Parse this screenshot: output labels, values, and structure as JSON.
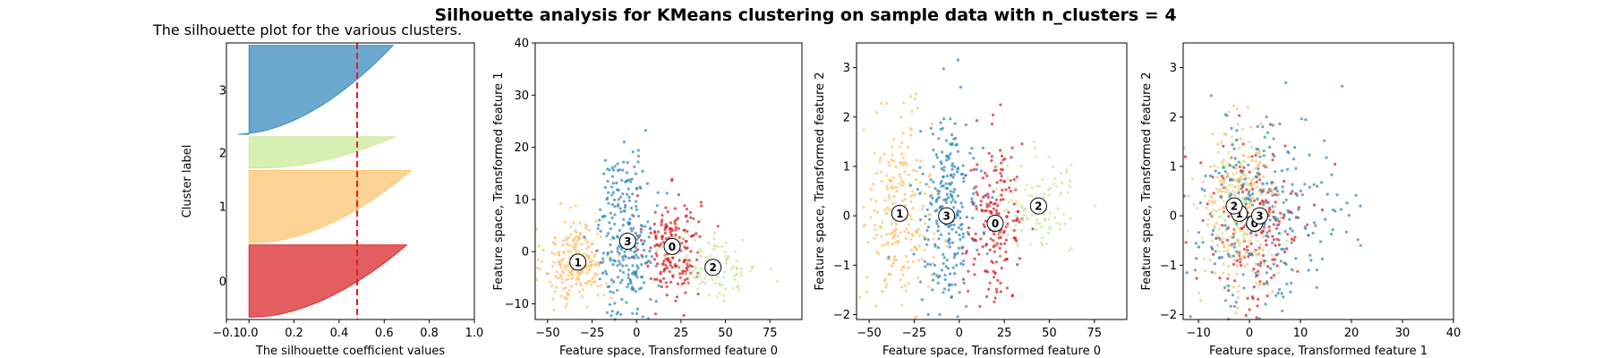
{
  "figure": {
    "title": "Silhouette analysis for KMeans clustering on sample data with n_clusters = 4"
  },
  "colors": {
    "cluster_0": "#d7191c",
    "cluster_1": "#fdc168",
    "cluster_2": "#c7e891",
    "cluster_3": "#2b83ba",
    "average_line": "#e41a1c"
  },
  "chart_data": [
    {
      "type": "area",
      "title": "The silhouette plot for the various clusters.",
      "xlabel": "The silhouette coefficient values",
      "ylabel": "Cluster label",
      "xlim": [
        -0.1,
        1.0
      ],
      "xticks": [
        "−0.1",
        "0.0",
        "0.2",
        "0.4",
        "0.6",
        "0.8",
        "1.0"
      ],
      "average_silhouette": 0.48,
      "clusters": [
        {
          "label": "0",
          "size": 300,
          "max": 0.7,
          "min": 0.02
        },
        {
          "label": "1",
          "size": 300,
          "max": 0.72,
          "min": 0.03
        },
        {
          "label": "2",
          "size": 130,
          "max": 0.65,
          "min": 0.06
        },
        {
          "label": "3",
          "size": 370,
          "max": 0.64,
          "min": -0.05
        }
      ]
    },
    {
      "type": "scatter",
      "title": "",
      "xlabel": "Feature space, Transformed feature 0",
      "ylabel": "Feature space, Transformed feature 1",
      "xlim": [
        -57,
        93
      ],
      "ylim": [
        -13,
        40
      ],
      "xticks": [
        "−50",
        "−25",
        "0",
        "25",
        "50",
        "75"
      ],
      "yticks": [
        "−10",
        "0",
        "10",
        "20",
        "30",
        "40"
      ],
      "centers": [
        {
          "label": "0",
          "x": 20,
          "y": 1
        },
        {
          "label": "1",
          "x": -33,
          "y": -2
        },
        {
          "label": "2",
          "x": 43,
          "y": -3
        },
        {
          "label": "3",
          "x": -5,
          "y": 2
        }
      ]
    },
    {
      "type": "scatter",
      "title": "",
      "xlabel": "Feature space, Transformed feature 0",
      "ylabel": "Feature space, Transformed feature 2",
      "xlim": [
        -57,
        93
      ],
      "ylim": [
        -2.1,
        3.5
      ],
      "xticks": [
        "−50",
        "−25",
        "0",
        "25",
        "50",
        "75"
      ],
      "yticks": [
        "−2",
        "−1",
        "0",
        "1",
        "2",
        "3"
      ],
      "centers": [
        {
          "label": "0",
          "x": 20,
          "y": -0.15
        },
        {
          "label": "1",
          "x": -33,
          "y": 0.05
        },
        {
          "label": "2",
          "x": 44,
          "y": 0.2
        },
        {
          "label": "3",
          "x": -7,
          "y": 0.0
        }
      ]
    },
    {
      "type": "scatter",
      "title": "",
      "xlabel": "Feature space, Transformed feature 1",
      "ylabel": "Feature space, Transformed feature 2",
      "xlim": [
        -13,
        40
      ],
      "ylim": [
        -2.1,
        3.5
      ],
      "xticks": [
        "−10",
        "0",
        "10",
        "20",
        "30",
        "40"
      ],
      "yticks": [
        "−2",
        "−1",
        "0",
        "1",
        "2",
        "3"
      ],
      "centers": [
        {
          "label": "0",
          "x": 1,
          "y": -0.15
        },
        {
          "label": "1",
          "x": -2,
          "y": 0.05
        },
        {
          "label": "2",
          "x": -3,
          "y": 0.2
        },
        {
          "label": "3",
          "x": 2,
          "y": 0.0
        }
      ]
    }
  ]
}
